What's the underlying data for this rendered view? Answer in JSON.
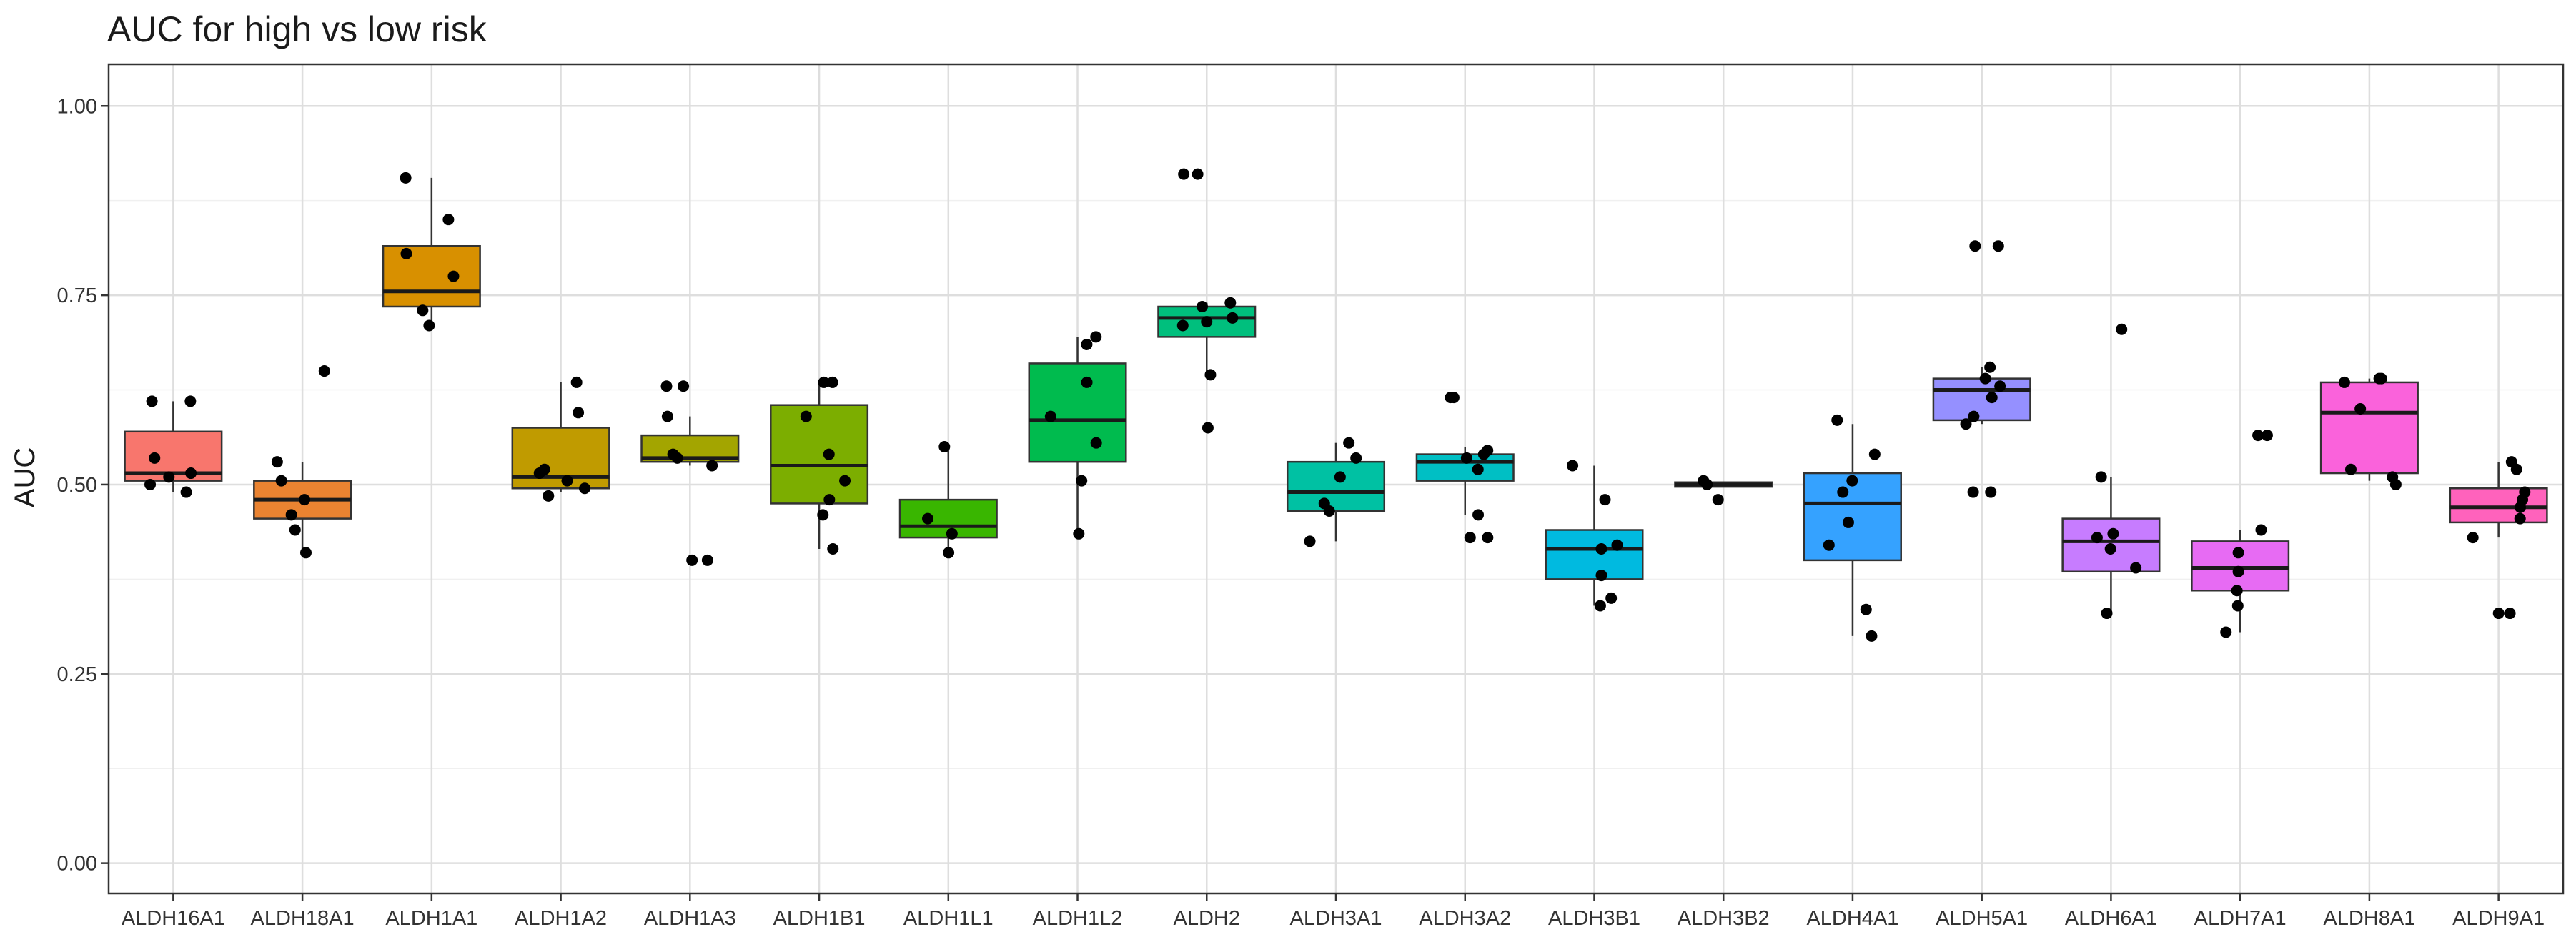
{
  "chart_data": {
    "type": "box",
    "title": "AUC for high vs low risk",
    "xlabel": "",
    "ylabel": "AUC",
    "ylim": [
      -0.04,
      1.055
    ],
    "y_ticks": [
      0.0,
      0.25,
      0.5,
      0.75,
      1.0
    ],
    "y_tick_labels": [
      "0.00",
      "0.25",
      "0.50",
      "0.75",
      "1.00"
    ],
    "grid": true,
    "legend": "none",
    "categories": [
      "ALDH16A1",
      "ALDH18A1",
      "ALDH1A1",
      "ALDH1A2",
      "ALDH1A3",
      "ALDH1B1",
      "ALDH1L1",
      "ALDH1L2",
      "ALDH2",
      "ALDH3A1",
      "ALDH3A2",
      "ALDH3B1",
      "ALDH3B2",
      "ALDH4A1",
      "ALDH5A1",
      "ALDH6A1",
      "ALDH7A1",
      "ALDH8A1",
      "ALDH9A1"
    ],
    "colors": [
      "#F8766D",
      "#EA8331",
      "#D89000",
      "#C09B00",
      "#A3A500",
      "#7CAE00",
      "#39B600",
      "#00BB4E",
      "#00BF7D",
      "#00C1A3",
      "#00BFC4",
      "#00BAE0",
      "#00B0F6",
      "#35A2FF",
      "#9590FF",
      "#C77CFF",
      "#E76BF3",
      "#FA62DB",
      "#FF62BC"
    ],
    "boxes": [
      {
        "name": "ALDH16A1",
        "whisker_low": 0.49,
        "q1": 0.505,
        "median": 0.515,
        "q3": 0.57,
        "whisker_high": 0.61,
        "points": [
          0.49,
          0.5,
          0.51,
          0.515,
          0.535,
          0.61,
          0.61
        ],
        "outliers": []
      },
      {
        "name": "ALDH18A1",
        "whisker_low": 0.41,
        "q1": 0.455,
        "median": 0.48,
        "q3": 0.505,
        "whisker_high": 0.53,
        "points": [
          0.41,
          0.44,
          0.46,
          0.48,
          0.505,
          0.53,
          0.65
        ],
        "outliers": [
          0.65
        ]
      },
      {
        "name": "ALDH1A1",
        "whisker_low": 0.71,
        "q1": 0.735,
        "median": 0.755,
        "q3": 0.815,
        "whisker_high": 0.905,
        "points": [
          0.71,
          0.73,
          0.775,
          0.805,
          0.85,
          0.905
        ],
        "outliers": []
      },
      {
        "name": "ALDH1A2",
        "whisker_low": 0.49,
        "q1": 0.495,
        "median": 0.51,
        "q3": 0.575,
        "whisker_high": 0.635,
        "points": [
          0.485,
          0.495,
          0.505,
          0.515,
          0.52,
          0.595,
          0.635
        ],
        "outliers": []
      },
      {
        "name": "ALDH1A3",
        "whisker_low": 0.525,
        "q1": 0.53,
        "median": 0.535,
        "q3": 0.565,
        "whisker_high": 0.59,
        "points": [
          0.4,
          0.4,
          0.525,
          0.535,
          0.54,
          0.59,
          0.63,
          0.63
        ],
        "outliers": [
          0.4,
          0.4,
          0.63,
          0.63
        ]
      },
      {
        "name": "ALDH1B1",
        "whisker_low": 0.415,
        "q1": 0.475,
        "median": 0.525,
        "q3": 0.605,
        "whisker_high": 0.635,
        "points": [
          0.415,
          0.46,
          0.48,
          0.505,
          0.54,
          0.59,
          0.635,
          0.635
        ],
        "outliers": []
      },
      {
        "name": "ALDH1L1",
        "whisker_low": 0.41,
        "q1": 0.43,
        "median": 0.445,
        "q3": 0.48,
        "whisker_high": 0.55,
        "points": [
          0.41,
          0.435,
          0.455,
          0.55
        ],
        "outliers": []
      },
      {
        "name": "ALDH1L2",
        "whisker_low": 0.435,
        "q1": 0.53,
        "median": 0.585,
        "q3": 0.66,
        "whisker_high": 0.695,
        "points": [
          0.435,
          0.505,
          0.555,
          0.59,
          0.635,
          0.685,
          0.695
        ],
        "outliers": []
      },
      {
        "name": "ALDH2",
        "whisker_low": 0.645,
        "q1": 0.695,
        "median": 0.72,
        "q3": 0.735,
        "whisker_high": 0.74,
        "points": [
          0.575,
          0.645,
          0.71,
          0.715,
          0.72,
          0.735,
          0.74,
          0.91,
          0.91
        ],
        "outliers": [
          0.575,
          0.91,
          0.91
        ]
      },
      {
        "name": "ALDH3A1",
        "whisker_low": 0.425,
        "q1": 0.465,
        "median": 0.49,
        "q3": 0.53,
        "whisker_high": 0.555,
        "points": [
          0.425,
          0.465,
          0.475,
          0.51,
          0.535,
          0.555
        ],
        "outliers": []
      },
      {
        "name": "ALDH3A2",
        "whisker_low": 0.46,
        "q1": 0.505,
        "median": 0.53,
        "q3": 0.54,
        "whisker_high": 0.55,
        "points": [
          0.43,
          0.43,
          0.46,
          0.52,
          0.535,
          0.54,
          0.545,
          0.615,
          0.615
        ],
        "outliers": [
          0.43,
          0.43,
          0.615,
          0.615
        ]
      },
      {
        "name": "ALDH3B1",
        "whisker_low": 0.34,
        "q1": 0.375,
        "median": 0.415,
        "q3": 0.44,
        "whisker_high": 0.525,
        "points": [
          0.34,
          0.35,
          0.38,
          0.415,
          0.42,
          0.48,
          0.525
        ],
        "outliers": []
      },
      {
        "name": "ALDH3B2",
        "whisker_low": 0.497,
        "q1": 0.497,
        "median": 0.5,
        "q3": 0.503,
        "whisker_high": 0.503,
        "points": [
          0.48,
          0.5,
          0.505
        ],
        "outliers": []
      },
      {
        "name": "ALDH4A1",
        "whisker_low": 0.3,
        "q1": 0.4,
        "median": 0.475,
        "q3": 0.515,
        "whisker_high": 0.58,
        "points": [
          0.3,
          0.335,
          0.42,
          0.45,
          0.49,
          0.505,
          0.54,
          0.585
        ],
        "outliers": []
      },
      {
        "name": "ALDH5A1",
        "whisker_low": 0.58,
        "q1": 0.585,
        "median": 0.625,
        "q3": 0.64,
        "whisker_high": 0.655,
        "points": [
          0.49,
          0.49,
          0.58,
          0.59,
          0.615,
          0.63,
          0.64,
          0.655,
          0.815,
          0.815
        ],
        "outliers": [
          0.49,
          0.49,
          0.815,
          0.815
        ]
      },
      {
        "name": "ALDH6A1",
        "whisker_low": 0.33,
        "q1": 0.385,
        "median": 0.425,
        "q3": 0.455,
        "whisker_high": 0.51,
        "points": [
          0.33,
          0.39,
          0.415,
          0.43,
          0.435,
          0.51,
          0.705
        ],
        "outliers": [
          0.705
        ]
      },
      {
        "name": "ALDH7A1",
        "whisker_low": 0.305,
        "q1": 0.36,
        "median": 0.39,
        "q3": 0.425,
        "whisker_high": 0.44,
        "points": [
          0.305,
          0.34,
          0.36,
          0.385,
          0.41,
          0.44,
          0.565,
          0.565
        ],
        "outliers": [
          0.565,
          0.565
        ]
      },
      {
        "name": "ALDH8A1",
        "whisker_low": 0.505,
        "q1": 0.515,
        "median": 0.595,
        "q3": 0.635,
        "whisker_high": 0.64,
        "points": [
          0.5,
          0.51,
          0.52,
          0.6,
          0.635,
          0.64,
          0.64
        ],
        "outliers": []
      },
      {
        "name": "ALDH9A1",
        "whisker_low": 0.43,
        "q1": 0.45,
        "median": 0.47,
        "q3": 0.495,
        "whisker_high": 0.53,
        "points": [
          0.33,
          0.33,
          0.43,
          0.455,
          0.47,
          0.48,
          0.49,
          0.52,
          0.53
        ],
        "outliers": [
          0.33,
          0.33
        ]
      }
    ]
  }
}
